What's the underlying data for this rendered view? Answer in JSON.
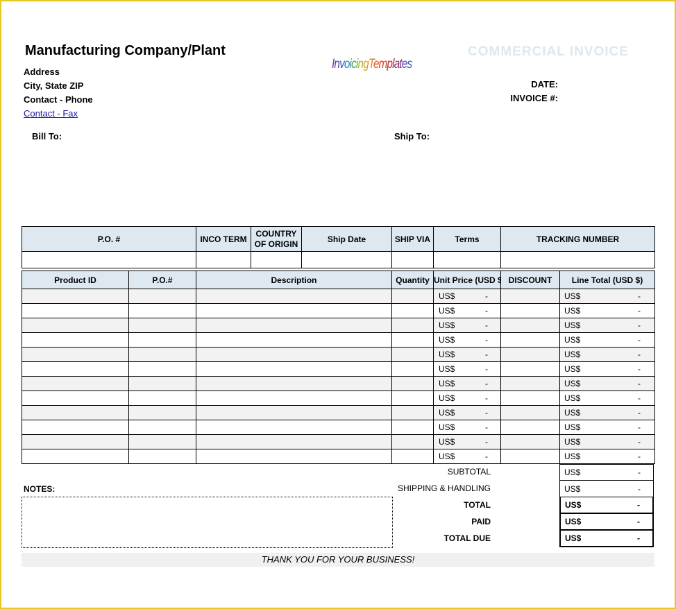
{
  "company": {
    "name": "Manufacturing Company/Plant",
    "address": "Address",
    "city_state_zip": "City, State ZIP",
    "contact_phone": "Contact - Phone",
    "contact_fax": "Contact - Fax"
  },
  "logo_text": "InvoicingTemplates",
  "document_title": "COMMERCIAL INVOICE",
  "date_label": "DATE:",
  "invoice_label": "INVOICE #:",
  "bill_to_label": "Bill To:",
  "ship_to_label": "Ship To:",
  "shipping_info": {
    "headers": [
      "P.O. #",
      "INCO TERM",
      "COUNTRY OF ORIGIN",
      "Ship Date",
      "SHIP VIA",
      "Terms",
      "TRACKING NUMBER"
    ]
  },
  "line_items": {
    "headers": [
      "Product ID",
      "P.O.#",
      "Description",
      "Quantity",
      "Unit Price (USD $)",
      "DISCOUNT",
      "Line Total (USD $)"
    ],
    "currency": "US$",
    "empty_value": "-",
    "row_count": 12
  },
  "totals": [
    {
      "label": "SUBTOTAL",
      "currency": "US$",
      "value": "-"
    },
    {
      "label": "SHIPPING & HANDLING",
      "currency": "US$",
      "value": "-"
    },
    {
      "label": "TOTAL",
      "currency": "US$",
      "value": "-"
    },
    {
      "label": "PAID",
      "currency": "US$",
      "value": "-"
    },
    {
      "label": "TOTAL DUE",
      "currency": "US$",
      "value": "-"
    }
  ],
  "notes_label": "NOTES:",
  "thank_you": "THANK YOU FOR YOUR BUSINESS!",
  "colors": {
    "frame": "#e6c81e",
    "header_fill": "#dde8f0",
    "title": "#dce8f0",
    "link": "#1a1aa0"
  }
}
